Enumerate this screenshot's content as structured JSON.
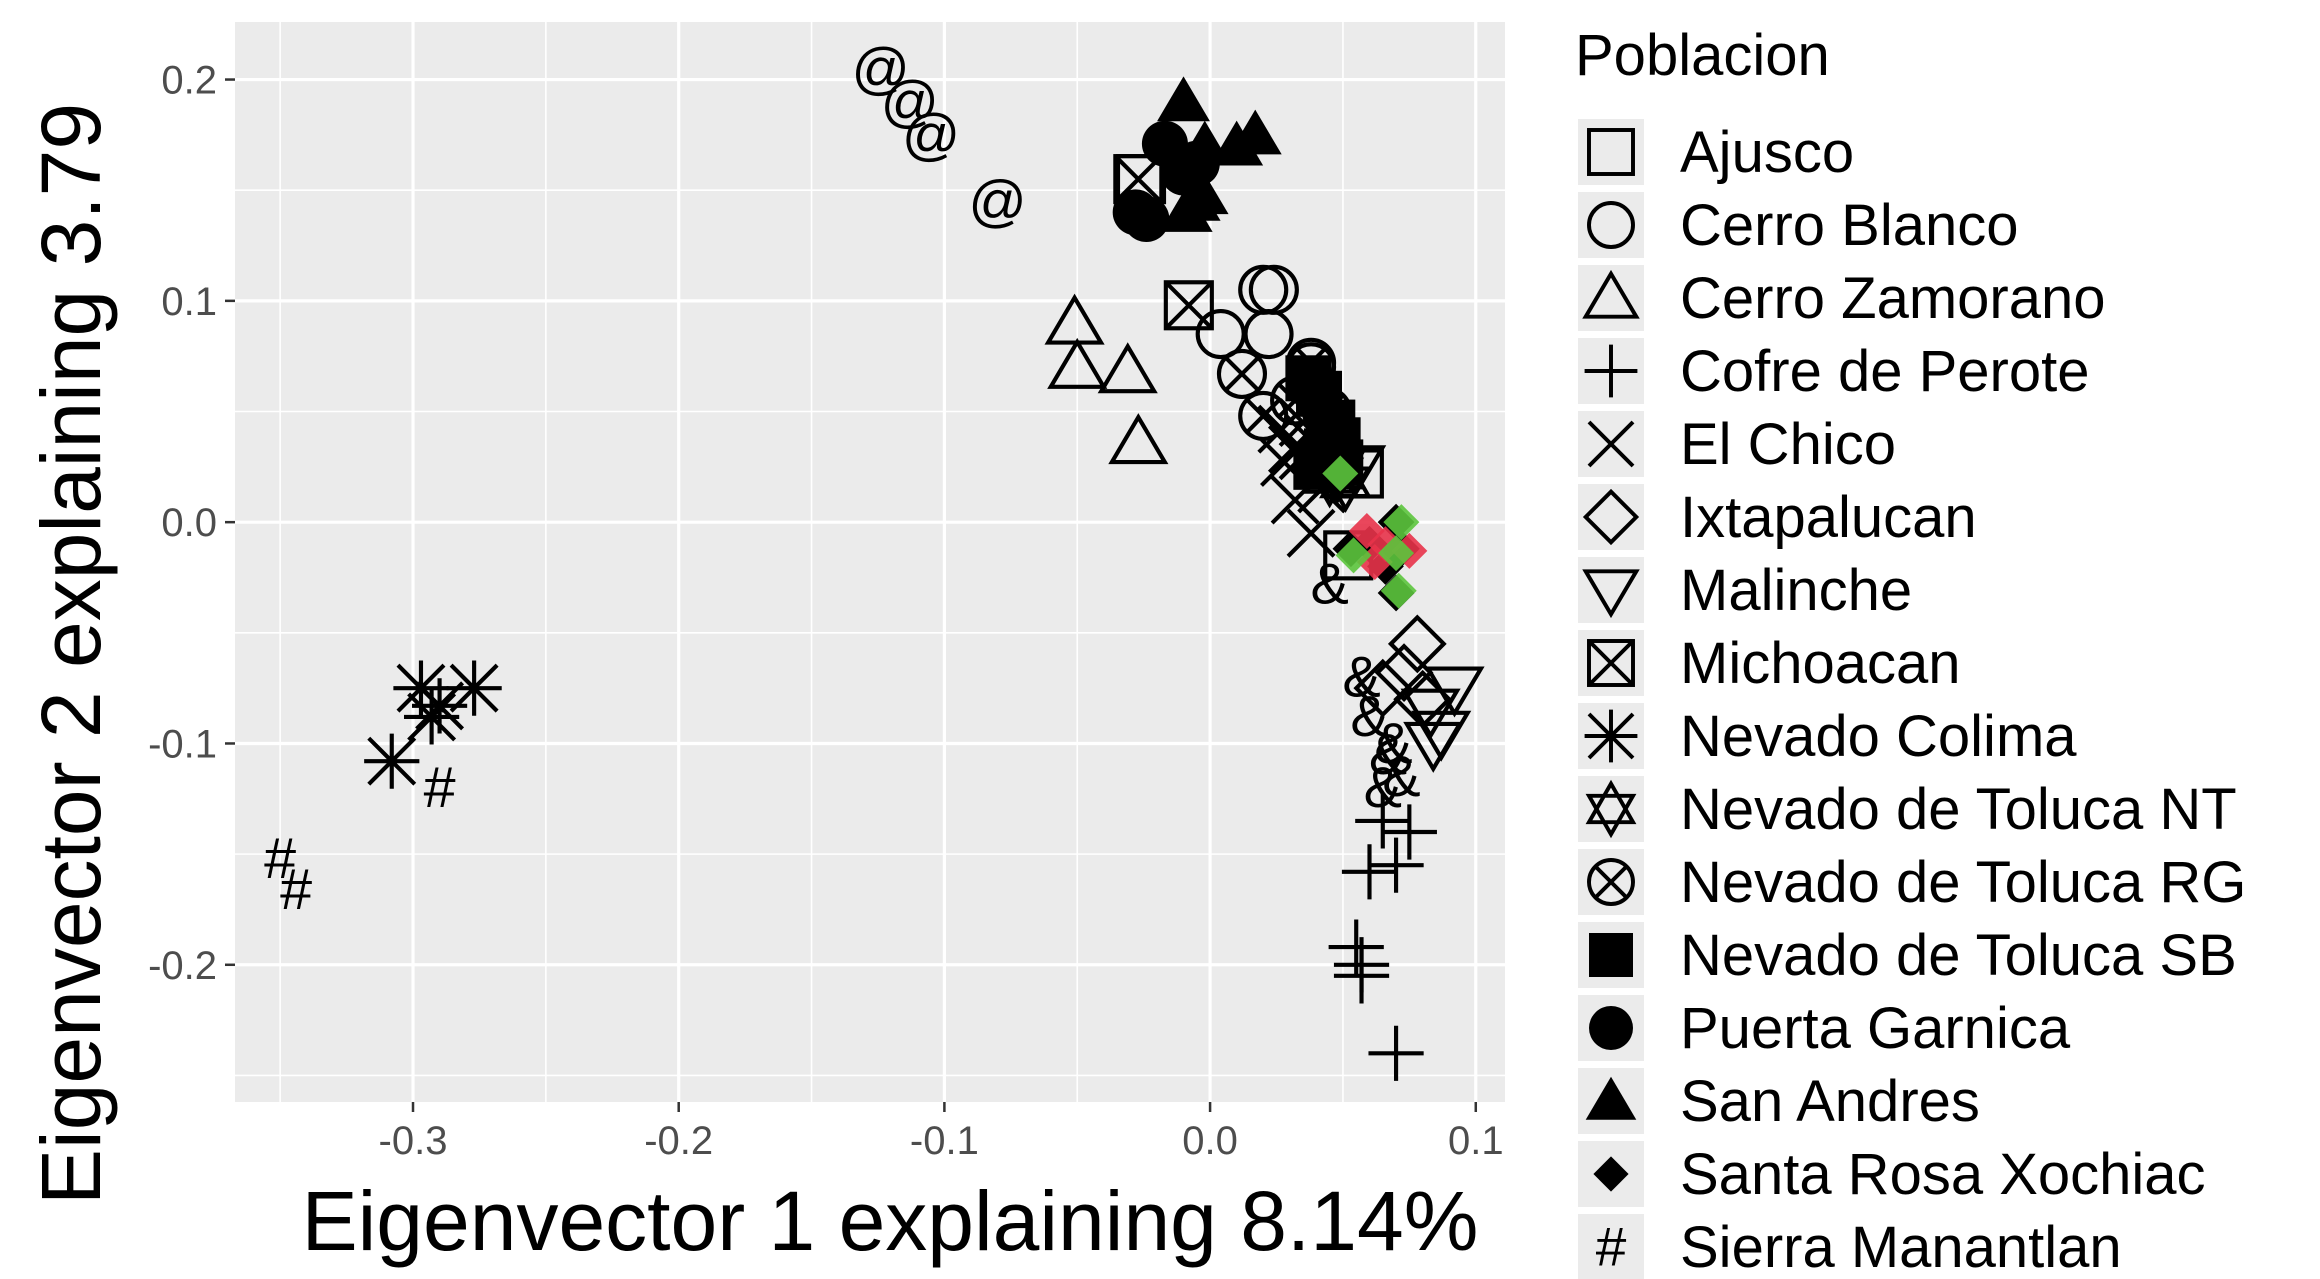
{
  "chart_data": {
    "type": "scatter",
    "title": "",
    "xlabel": "Eigenvector 1 explaining 8.14%",
    "ylabel": "Eigenvector 2 explaining 3.79",
    "xlim": [
      -0.367,
      0.111
    ],
    "ylim": [
      -0.262,
      0.226
    ],
    "xticks": [
      -0.3,
      -0.2,
      -0.1,
      0.0,
      0.1
    ],
    "xtick_labels": [
      "-0.3",
      "-0.2",
      "-0.1",
      "0.0",
      "0.1"
    ],
    "yticks": [
      -0.2,
      -0.1,
      0.0,
      0.1,
      0.2
    ],
    "ytick_labels": [
      "-0.2",
      "-0.1",
      "0.0",
      "0.1",
      "0.2"
    ],
    "grid": true,
    "legend_title": "Poblacion",
    "legend_position": "right",
    "colors": {
      "panel": "#ebebeb",
      "grid": "#ffffff",
      "marker": "#000000",
      "highlight_red": "#e8334a",
      "highlight_green": "#5cc53d"
    },
    "series": [
      {
        "name": "Ajusco",
        "shape": "open-square",
        "points": [
          [
            -0.026,
            0.155
          ],
          [
            0.052,
            -0.015
          ],
          [
            0.056,
            0.022
          ]
        ]
      },
      {
        "name": "Cerro Blanco",
        "shape": "open-circle",
        "points": [
          [
            0.004,
            0.085
          ],
          [
            0.02,
            0.105
          ],
          [
            0.022,
            0.085
          ],
          [
            0.024,
            0.105
          ],
          [
            0.038,
            0.07
          ]
        ]
      },
      {
        "name": "Cerro Zamorano",
        "shape": "open-triangle",
        "points": [
          [
            -0.051,
            0.09
          ],
          [
            -0.05,
            0.07
          ],
          [
            -0.031,
            0.068
          ],
          [
            -0.027,
            0.036
          ]
        ]
      },
      {
        "name": "Cofre de Perote",
        "shape": "plus",
        "points": [
          [
            0.055,
            -0.192
          ],
          [
            0.057,
            -0.205
          ],
          [
            0.057,
            -0.2
          ],
          [
            0.07,
            -0.24
          ],
          [
            0.06,
            -0.158
          ],
          [
            0.07,
            -0.155
          ],
          [
            0.065,
            -0.135
          ],
          [
            0.075,
            -0.14
          ]
        ]
      },
      {
        "name": "El Chico",
        "shape": "cross",
        "points": [
          [
            0.037,
            0.038
          ],
          [
            0.031,
            0.033
          ],
          [
            0.027,
            0.042
          ],
          [
            0.035,
            0.03
          ],
          [
            0.042,
            0.015
          ],
          [
            0.032,
            0.01
          ],
          [
            0.038,
            -0.005
          ],
          [
            0.035,
            0.045
          ],
          [
            0.028,
            0.027
          ]
        ]
      },
      {
        "name": "Ixtapalucan",
        "shape": "open-diamond",
        "points": [
          [
            0.078,
            -0.055
          ],
          [
            0.073,
            -0.068
          ],
          [
            0.08,
            -0.08
          ],
          [
            0.065,
            -0.075
          ]
        ]
      },
      {
        "name": "Malinche",
        "shape": "open-down-triangle",
        "points": [
          [
            0.083,
            -0.085
          ],
          [
            0.087,
            -0.095
          ],
          [
            0.092,
            -0.075
          ],
          [
            0.084,
            -0.1
          ],
          [
            0.055,
            0.025
          ],
          [
            0.047,
            0.022
          ]
        ]
      },
      {
        "name": "Michoacan",
        "shape": "box-x",
        "points": [
          [
            -0.027,
            0.155
          ],
          [
            -0.008,
            0.098
          ]
        ]
      },
      {
        "name": "Nevado Colima",
        "shape": "asterisk",
        "points": [
          [
            -0.277,
            -0.075
          ],
          [
            -0.297,
            -0.075
          ],
          [
            -0.293,
            -0.088
          ],
          [
            -0.29,
            -0.083
          ],
          [
            -0.308,
            -0.108
          ]
        ]
      },
      {
        "name": "Nevado de Toluca NT",
        "shape": "star-of-david",
        "points": [
          [
            0.048,
            0.022
          ],
          [
            0.051,
            0.018
          ],
          [
            0.045,
            0.02
          ]
        ]
      },
      {
        "name": "Nevado de Toluca RG",
        "shape": "circle-x",
        "points": [
          [
            0.012,
            0.067
          ],
          [
            0.02,
            0.048
          ],
          [
            0.032,
            0.055
          ],
          [
            0.038,
            0.072
          ],
          [
            0.044,
            0.05
          ]
        ]
      },
      {
        "name": "Nevado de Toluca SB",
        "shape": "filled-square",
        "points": [
          [
            0.037,
            0.065
          ],
          [
            0.041,
            0.058
          ],
          [
            0.045,
            0.04
          ],
          [
            0.048,
            0.037
          ],
          [
            0.044,
            0.032
          ],
          [
            0.049,
            0.027
          ],
          [
            0.04,
            0.025
          ],
          [
            0.046,
            0.045
          ]
        ]
      },
      {
        "name": "Puerta Garnica",
        "shape": "filled-circle",
        "points": [
          [
            -0.017,
            0.171
          ],
          [
            -0.028,
            0.14
          ],
          [
            -0.024,
            0.137
          ],
          [
            -0.01,
            0.158
          ],
          [
            -0.005,
            0.162
          ]
        ]
      },
      {
        "name": "San Andres",
        "shape": "filled-triangle",
        "points": [
          [
            -0.01,
            0.19
          ],
          [
            -0.002,
            0.17
          ],
          [
            0.01,
            0.17
          ],
          [
            0.017,
            0.175
          ],
          [
            -0.009,
            0.14
          ],
          [
            -0.006,
            0.145
          ],
          [
            -0.003,
            0.148
          ]
        ]
      },
      {
        "name": "Santa Rosa Xochiac",
        "shape": "filled-diamond",
        "points": [
          [
            0.053,
            -0.012
          ],
          [
            0.06,
            -0.01
          ],
          [
            0.066,
            -0.02
          ],
          [
            0.07,
            -0.032
          ],
          [
            0.072,
            -0.012
          ],
          [
            0.07,
            0.0
          ]
        ]
      },
      {
        "name": "Sierra Manantlan",
        "shape": "hash",
        "points": [
          [
            -0.35,
            -0.152
          ],
          [
            -0.344,
            -0.166
          ],
          [
            -0.29,
            -0.12
          ]
        ]
      },
      {
        "name": "",
        "shape": "at",
        "points": [
          [
            -0.124,
            0.205
          ],
          [
            -0.113,
            0.19
          ],
          [
            -0.105,
            0.175
          ],
          [
            -0.08,
            0.145
          ]
        ]
      },
      {
        "name": "",
        "shape": "ampersand",
        "points": [
          [
            0.045,
            -0.028
          ],
          [
            0.057,
            -0.07
          ],
          [
            0.06,
            -0.088
          ],
          [
            0.067,
            -0.105
          ],
          [
            0.072,
            -0.115
          ],
          [
            0.065,
            -0.12
          ],
          [
            0.069,
            -0.1
          ]
        ]
      }
    ],
    "highlights": [
      {
        "x": 0.059,
        "y": -0.004,
        "color": "highlight_red"
      },
      {
        "x": 0.066,
        "y": -0.01,
        "color": "highlight_red"
      },
      {
        "x": 0.075,
        "y": -0.013,
        "color": "highlight_red"
      },
      {
        "x": 0.062,
        "y": -0.018,
        "color": "highlight_red"
      },
      {
        "x": 0.054,
        "y": -0.015,
        "color": "highlight_green"
      },
      {
        "x": 0.072,
        "y": 0.0,
        "color": "highlight_green"
      },
      {
        "x": 0.07,
        "y": -0.014,
        "color": "highlight_green"
      },
      {
        "x": 0.071,
        "y": -0.031,
        "color": "highlight_green"
      },
      {
        "x": 0.049,
        "y": 0.022,
        "color": "highlight_green"
      }
    ]
  }
}
